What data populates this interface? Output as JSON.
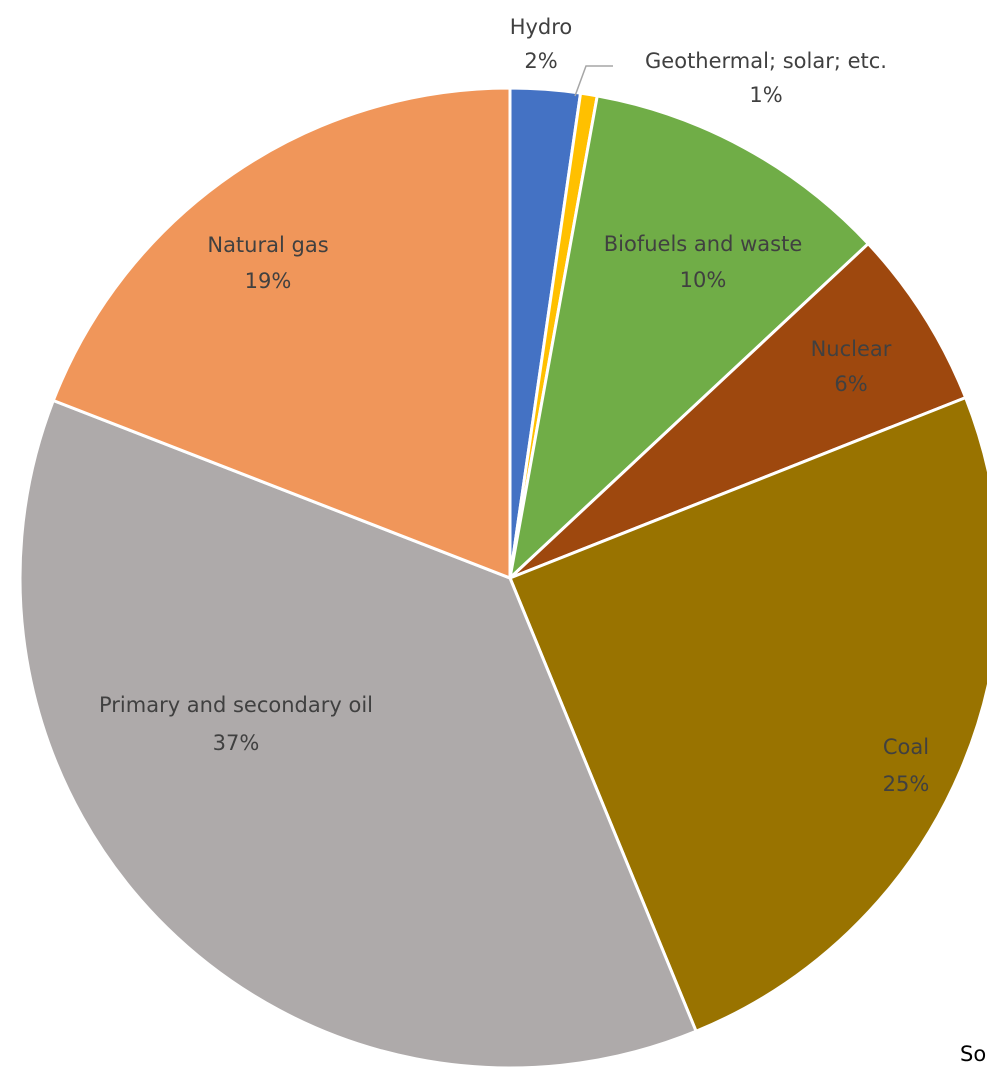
{
  "chart_data": {
    "type": "pie",
    "title": "",
    "slices": [
      {
        "label": "Hydro",
        "value_label": "2%",
        "value": 2.3,
        "color": "#4472C4"
      },
      {
        "label": "Geothermal;  solar; etc.",
        "value_label": "1%",
        "value": 0.55,
        "color": "#FFC000"
      },
      {
        "label": "Biofuels and waste",
        "value_label": "10%",
        "value": 10.2,
        "color": "#70AD47"
      },
      {
        "label": "Nuclear",
        "value_label": "6%",
        "value": 5.95,
        "color": "#9E480E"
      },
      {
        "label": "Coal",
        "value_label": "25%",
        "value": 24.8,
        "color": "#997300"
      },
      {
        "label": "Primary and secondary oil",
        "value_label": "37%",
        "value": 37.1,
        "color": "#AEAAAA"
      },
      {
        "label": "Natural gas",
        "value_label": "19%",
        "value": 19.1,
        "color": "#F0965A"
      }
    ],
    "start_angle_deg": 0,
    "direction": "clockwise",
    "label_text_color": "#404040"
  },
  "source_text": "So"
}
